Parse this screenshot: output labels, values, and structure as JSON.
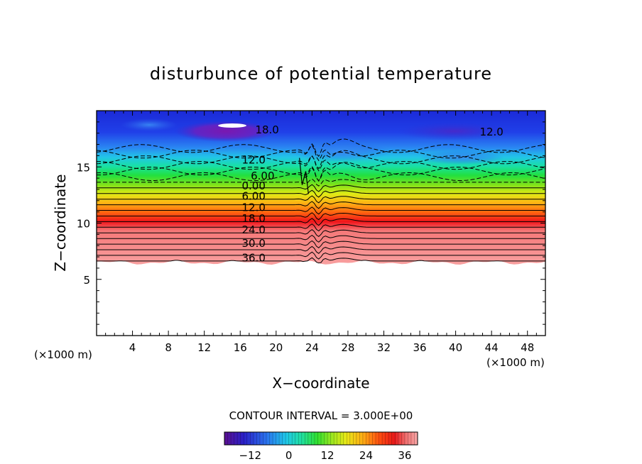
{
  "chart_data": {
    "type": "heatmap",
    "title": "disturbunce of potential temperature",
    "xlabel": "X−coordinate",
    "ylabel": "Z−coordinate",
    "x_unit_left": "(×1000 m)",
    "x_unit_right": "(×1000 m)",
    "xlim": [
      0,
      50
    ],
    "ylim": [
      0,
      20
    ],
    "x_ticks": [
      4,
      8,
      12,
      16,
      20,
      24,
      28,
      32,
      36,
      40,
      44,
      48
    ],
    "x_tick_labels": [
      "4",
      "8",
      "12",
      "16",
      "20",
      "24",
      "28",
      "32",
      "36",
      "40",
      "44",
      "48"
    ],
    "y_ticks": [
      5,
      10,
      15
    ],
    "y_tick_labels": [
      "5",
      "10",
      "15"
    ],
    "contour_interval_text": "CONTOUR INTERVAL = 3.000E+00",
    "contour_interval": 3.0,
    "contour_labels": [
      {
        "text": "18.0",
        "x": 19.0,
        "z": 18.3
      },
      {
        "text": "12.0",
        "x": 44.0,
        "z": 18.1
      },
      {
        "text": "12.0",
        "x": 17.5,
        "z": 15.6
      },
      {
        "text": "6.00",
        "x": 18.5,
        "z": 14.2
      },
      {
        "text": "0.00",
        "x": 17.5,
        "z": 13.3
      },
      {
        "text": "6.00",
        "x": 17.5,
        "z": 12.4
      },
      {
        "text": "12.0",
        "x": 17.5,
        "z": 11.4
      },
      {
        "text": "18.0",
        "x": 17.5,
        "z": 10.4
      },
      {
        "text": "24.0",
        "x": 17.5,
        "z": 9.4
      },
      {
        "text": "30.0",
        "x": 17.5,
        "z": 8.2
      },
      {
        "text": "36.0",
        "x": 17.5,
        "z": 6.9
      }
    ],
    "field_summary": {
      "z_top_value": -12,
      "z_zero_level": 13.3,
      "gradient_per_km": 6.0,
      "max_value": 40,
      "min_value": -20,
      "lower_boundary_z": 6.5,
      "below_boundary_fill": "white"
    },
    "colorbar": {
      "min": -20,
      "max": 40,
      "ticks": [
        -12,
        0,
        12,
        24,
        36
      ],
      "tick_labels": [
        "−12",
        "0",
        "12",
        "24",
        "36"
      ]
    }
  }
}
